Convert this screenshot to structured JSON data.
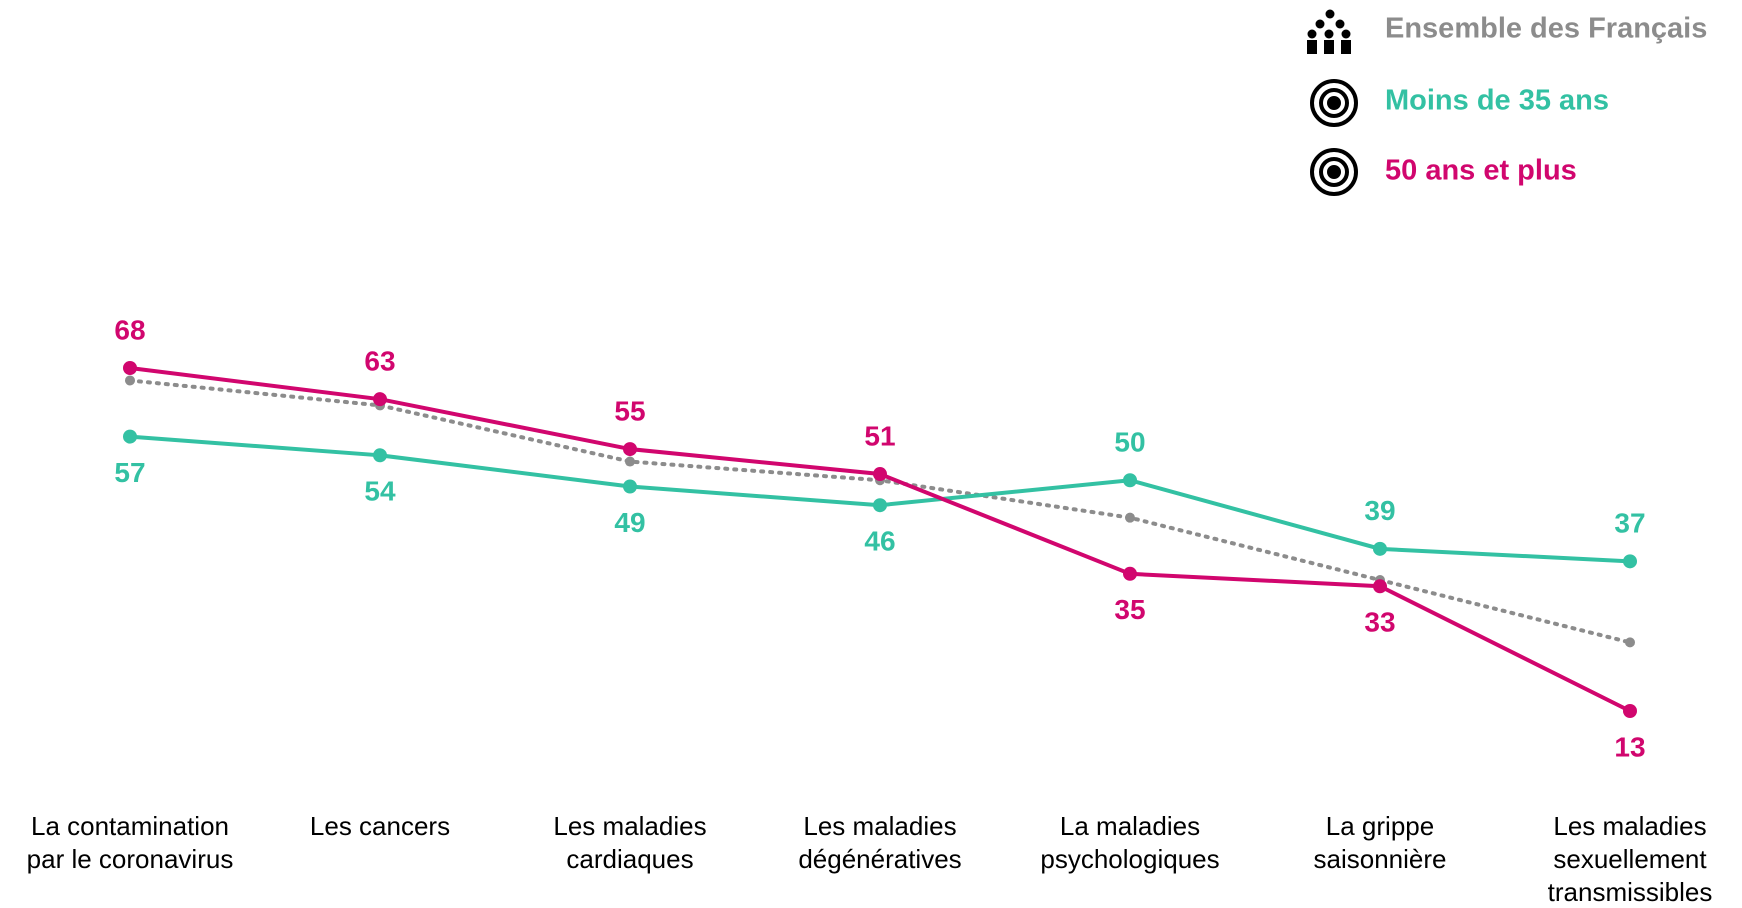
{
  "chart_data": {
    "type": "line",
    "categories": [
      "La contamination\npar le coronavirus",
      "Les cancers",
      "Les maladies\ncardiaques",
      "Les maladies\ndégénératives",
      "La maladies\npsychologiques",
      "La grippe\nsaisonnière",
      "Les maladies\nsexuellement\ntransmissibles"
    ],
    "series": [
      {
        "name": "Ensemble des Français",
        "color": "#8c8c8c",
        "line_style": "dotted",
        "data_labels": false,
        "values": [
          66,
          62,
          53,
          50,
          44,
          34,
          24
        ]
      },
      {
        "name": "Moins de 35 ans",
        "color": "#33c1a3",
        "line_style": "solid",
        "data_labels": true,
        "values": [
          57,
          54,
          49,
          46,
          50,
          39,
          37
        ]
      },
      {
        "name": "50 ans et plus",
        "color": "#d1066e",
        "line_style": "solid",
        "data_labels": true,
        "values": [
          68,
          63,
          55,
          51,
          35,
          33,
          13
        ]
      }
    ],
    "legend": "top-right"
  }
}
